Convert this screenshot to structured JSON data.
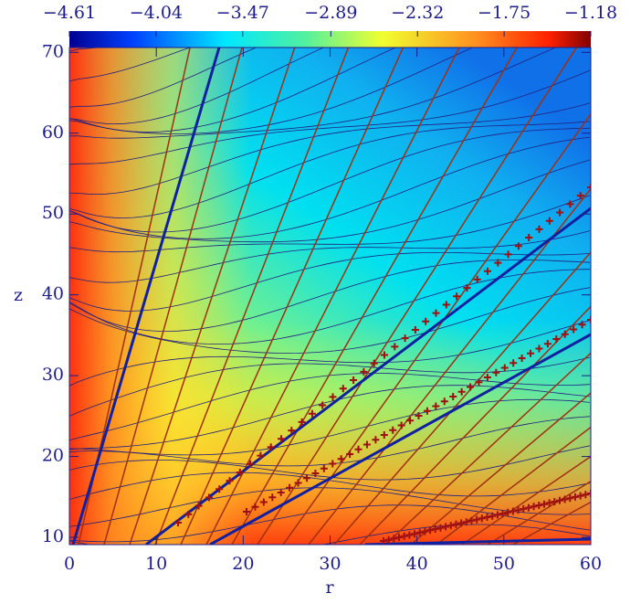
{
  "chart_data": {
    "type": "contour",
    "xlabel": "r",
    "ylabel": "z",
    "xlim": [
      0,
      60
    ],
    "xticks": [
      0,
      10,
      20,
      30,
      40,
      50,
      60
    ],
    "ylim": [
      9.1,
      70.6
    ],
    "yticks": [
      10,
      20,
      30,
      40,
      50,
      60,
      70
    ],
    "colorbar": {
      "lim": [
        -4.61,
        -1.18
      ],
      "ticks": [
        {
          "value": -4.61,
          "label": "−4.61"
        },
        {
          "value": -4.04,
          "label": "−4.04"
        },
        {
          "value": -3.47,
          "label": "−3.47"
        },
        {
          "value": -2.89,
          "label": "−2.89"
        },
        {
          "value": -2.32,
          "label": "−2.32"
        },
        {
          "value": -1.75,
          "label": "−1.75"
        },
        {
          "value": -1.18,
          "label": "−1.18"
        }
      ]
    }
  }
}
